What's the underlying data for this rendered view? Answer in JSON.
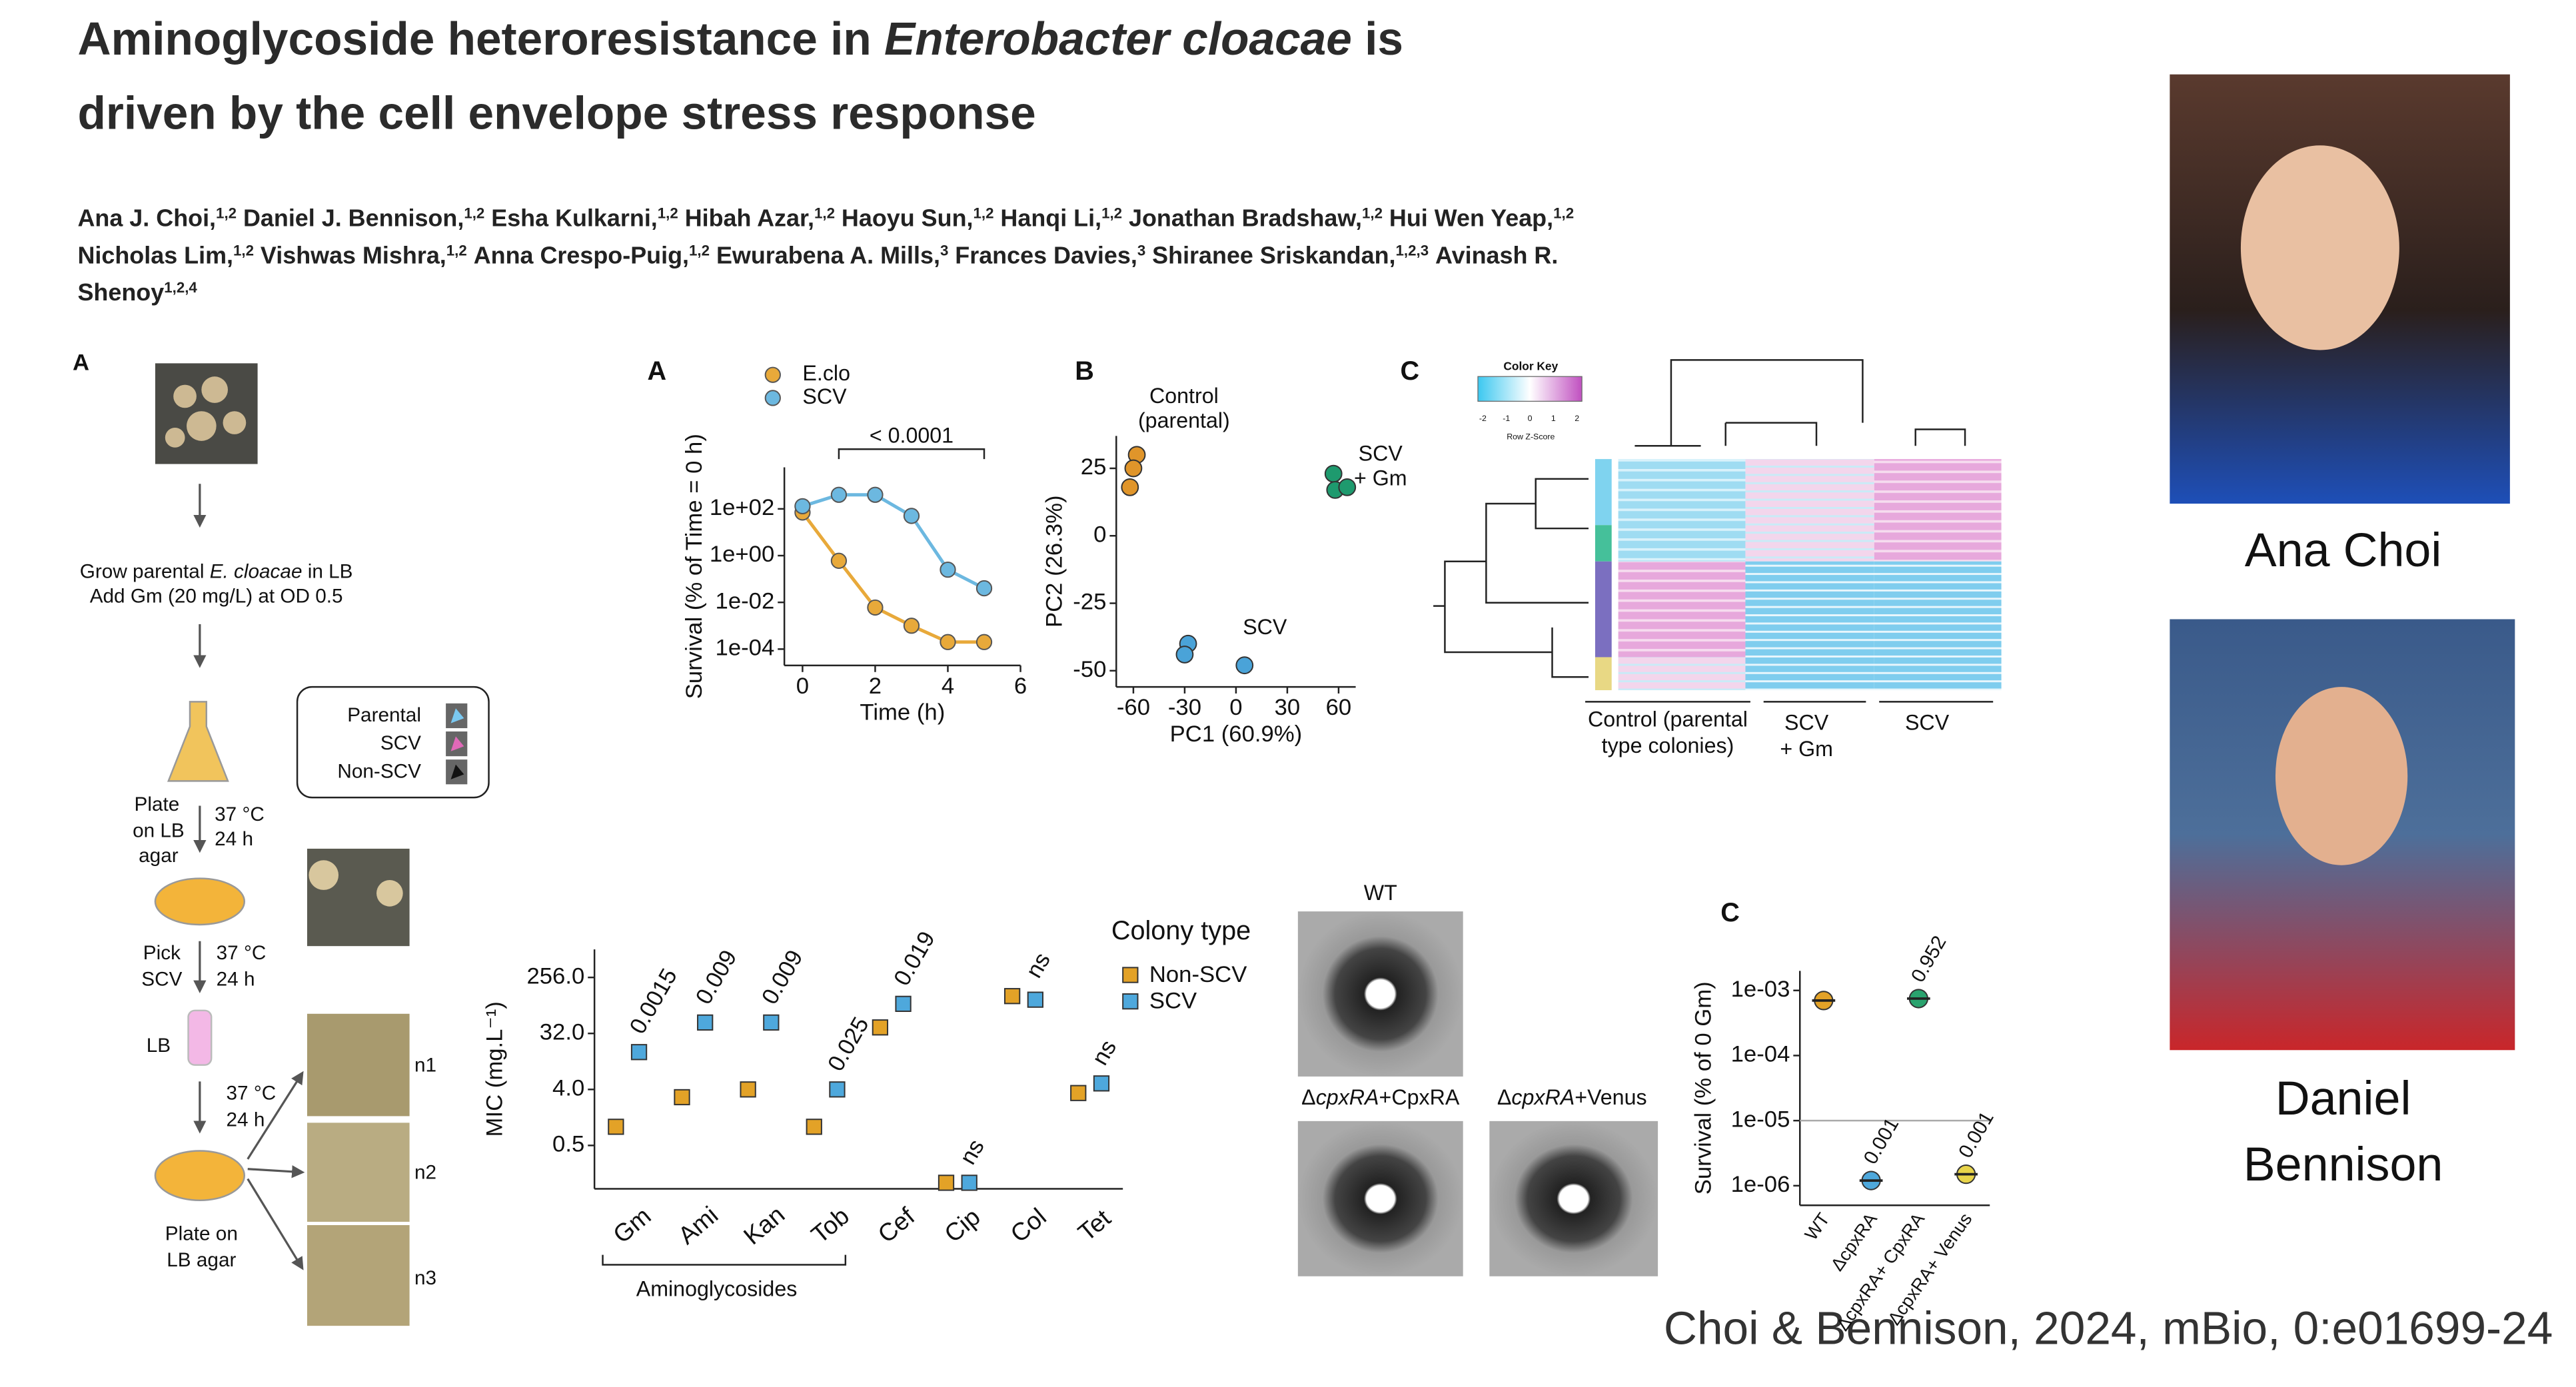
{
  "header": {
    "title_line1": [
      "Aminoglycoside heteroresistance in ",
      "Enterobacter cloacae",
      " is"
    ],
    "title_line2": "driven by the cell envelope stress response",
    "author_lines": [
      [
        {
          "name": "Ana J. Choi,",
          "aff": "1,2"
        },
        {
          "name": "Daniel J. Bennison,",
          "aff": "1,2"
        },
        {
          "name": "Esha Kulkarni,",
          "aff": "1,2"
        },
        {
          "name": "Hibah Azar,",
          "aff": "1,2"
        },
        {
          "name": "Haoyu Sun,",
          "aff": "1,2"
        },
        {
          "name": "Hanqi Li,",
          "aff": "1,2"
        },
        {
          "name": "Jonathan Bradshaw,",
          "aff": "1,2"
        },
        {
          "name": "Hui Wen Yeap,",
          "aff": "1,2"
        }
      ],
      [
        {
          "name": "Nicholas Lim,",
          "aff": "1,2"
        },
        {
          "name": "Vishwas Mishra,",
          "aff": "1,2"
        },
        {
          "name": "Anna Crespo-Puig,",
          "aff": "1,2"
        },
        {
          "name": "Ewurabena A. Mills,",
          "aff": "3"
        },
        {
          "name": "Frances Davies,",
          "aff": "3"
        },
        {
          "name": "Shiranee Sriskandan,",
          "aff": "1,2,3"
        },
        {
          "name": "Avinash R."
        }
      ],
      [
        {
          "name": "Shenoy",
          "aff": "1,2,4"
        }
      ]
    ]
  },
  "schematic": {
    "panel": "A",
    "step1": [
      "Grow parental ",
      "E. cloacae",
      " in LB"
    ],
    "step2": "Add Gm (20 mg/L) at OD 0.5",
    "legend": [
      "Parental",
      "SCV",
      "Non-SCV"
    ],
    "plate1": [
      "Plate",
      "on LB",
      "agar"
    ],
    "cond1": [
      "37 °C",
      "24 h"
    ],
    "pick": [
      "Pick",
      "SCV"
    ],
    "cond2": [
      "37 °C",
      "24 h"
    ],
    "lb": "LB",
    "cond3": [
      "37 °C",
      "24 h"
    ],
    "plate2": [
      "Plate on",
      "LB agar"
    ],
    "replicates": [
      "n1",
      "n2",
      "n3"
    ]
  },
  "heatmap": {
    "panel": "C",
    "key_title": "Color Key",
    "key_label": "Row Z-Score",
    "key_ticks": [
      -2,
      -1,
      0,
      1,
      2
    ],
    "groups": [
      [
        "Control (parental",
        "type colonies)"
      ],
      [
        "SCV",
        "+ Gm"
      ],
      [
        "SCV"
      ]
    ]
  },
  "disks": {
    "labels": [
      [
        "WT"
      ],
      [
        "Δ",
        "cpxRA",
        "+CpxRA"
      ],
      [
        "Δ",
        "cpxRA",
        "+Venus"
      ]
    ]
  },
  "photos": {
    "first": "Ana Choi",
    "second": [
      "Daniel",
      "Bennison"
    ]
  },
  "citation": "Choi & Bennison, 2024, mBio, 0:e01699-24",
  "chart_data": [
    {
      "type": "line",
      "panel": "A",
      "x": [
        0,
        1,
        2,
        3,
        4,
        5
      ],
      "series": [
        {
          "name": "E.clo",
          "color": "#e8a93a",
          "values": [
            70,
            0.6,
            0.006,
            0.001,
            0.0002,
            0.0002
          ]
        },
        {
          "name": "SCV",
          "color": "#6cb8e0",
          "values": [
            130,
            400,
            400,
            50,
            0.25,
            0.04
          ]
        }
      ],
      "xlabel": "Time (h)",
      "ylabel": "Survival (% of Time = 0 h)",
      "xlim": [
        -0.5,
        6
      ],
      "xticks": [
        0,
        2,
        4,
        6
      ],
      "yscale": "log",
      "ylim": [
        2e-05,
        6000
      ],
      "yticks": [
        {
          "value": 100,
          "label": "1e+02"
        },
        {
          "value": 1,
          "label": "1e+00"
        },
        {
          "value": 0.01,
          "label": "1e-02"
        },
        {
          "value": 0.0001,
          "label": "1e-04"
        }
      ],
      "annotation": "< 0.0001"
    },
    {
      "type": "scatter",
      "panel": "B",
      "xlabel": "PC1 (60.9%)",
      "ylabel": "PC2 (26.3%)",
      "xlim": [
        -70,
        70
      ],
      "xticks": [
        -60,
        -30,
        0,
        30,
        60
      ],
      "ylim": [
        -56,
        37
      ],
      "yticks": [
        25,
        0,
        -25,
        -50
      ],
      "groups": [
        {
          "label_lines": [
            "Control",
            "(parental)"
          ],
          "color": "#e0952a",
          "x": [
            -58,
            -60,
            -62
          ],
          "values": [
            30,
            25,
            18
          ]
        },
        {
          "label_lines": [
            "SCV",
            "+ Gm"
          ],
          "color": "#1e9a6e",
          "x": [
            57,
            58,
            65
          ],
          "values": [
            23,
            17,
            18
          ]
        },
        {
          "label_lines": [
            "SCV"
          ],
          "color": "#4aa3d8",
          "x": [
            -28,
            -30,
            5
          ],
          "values": [
            -40,
            -44,
            -48
          ]
        }
      ]
    },
    {
      "type": "dot",
      "ylabel": "MIC (mg.L⁻¹)",
      "yscale": "log",
      "ylim": [
        0.1,
        725
      ],
      "yticks": [
        0.5,
        {
          "value": 4,
          "label": "4.0"
        },
        {
          "value": 32,
          "label": "32.0"
        },
        {
          "value": 256,
          "label": "256.0"
        }
      ],
      "categories": [
        "Gm",
        "Ami",
        "Kan",
        "Tob",
        "Cef",
        "Cip",
        "Col",
        "Tet"
      ],
      "group_label": "Aminoglycosides",
      "legend_title": "Colony type",
      "series": [
        {
          "name": "Non-SCV",
          "color": "#e3a227",
          "values": [
            1,
            3,
            4,
            1,
            40,
            0.125,
            128,
            3.5
          ]
        },
        {
          "name": "SCV",
          "color": "#4ea8dc",
          "values": [
            16,
            48,
            48,
            4,
            96,
            0.125,
            112,
            5
          ]
        }
      ],
      "annotations": [
        "0.0015",
        "0.009",
        "0.009",
        "0.025",
        "0.019",
        "ns",
        "ns",
        "ns"
      ]
    },
    {
      "type": "strip",
      "panel": "C",
      "ylabel": "Survival (% of 0 Gm)",
      "yscale": "log",
      "ylim": [
        5e-07,
        0.002
      ],
      "yticks": [
        {
          "value": 0.001,
          "label": "1e-03"
        },
        {
          "value": 0.0001,
          "label": "1e-04"
        },
        {
          "value": 1e-05,
          "label": "1e-05"
        },
        {
          "value": 1e-06,
          "label": "1e-06"
        }
      ],
      "hline": 1e-05,
      "categories": [
        "WT",
        "ΔcpxRA",
        "ΔcpxRA+ CpxRA",
        "ΔcpxRA+ Venus"
      ],
      "values": [
        0.0007,
        1.2e-06,
        0.00075,
        1.5e-06
      ],
      "colors": [
        "#e3a227",
        "#4ea8dc",
        "#2aa36e",
        "#e8d44a"
      ],
      "annotations": [
        null,
        "0.001",
        "0.952",
        "0.001"
      ]
    }
  ]
}
